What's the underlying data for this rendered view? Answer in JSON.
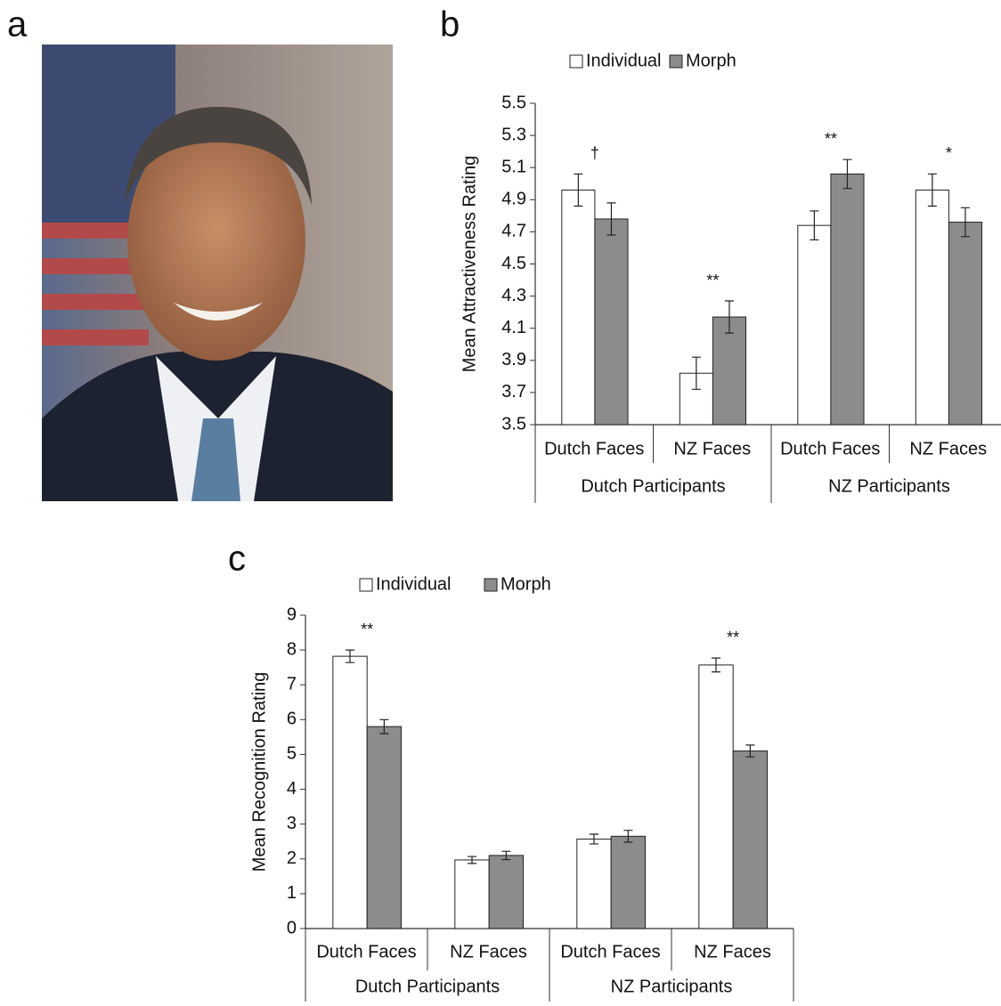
{
  "panel_labels": [
    "a",
    "b",
    "c"
  ],
  "chart_data": [
    {
      "type": "bar",
      "y_label": "Mean Attractiveness Rating",
      "categories": [
        "Dutch Faces",
        "NZ Faces",
        "Dutch Faces",
        "NZ Faces"
      ],
      "groups": [
        "Dutch Participants",
        "NZ Participants"
      ],
      "series": [
        {
          "name": "Individual",
          "color": "#ffffff",
          "values": [
            4.96,
            3.82,
            4.74,
            4.96
          ],
          "errors": [
            0.1,
            0.1,
            0.09,
            0.1
          ]
        },
        {
          "name": "Morph",
          "color": "#8c8c8c",
          "values": [
            4.78,
            4.17,
            5.06,
            4.76
          ],
          "errors": [
            0.1,
            0.1,
            0.09,
            0.09
          ]
        }
      ],
      "annotations": [
        "†",
        "**",
        "**",
        "*"
      ],
      "ylim": [
        3.5,
        5.5
      ],
      "yticks": [
        3.5,
        3.7,
        3.9,
        4.1,
        4.3,
        4.5,
        4.7,
        4.9,
        5.1,
        5.3,
        5.5
      ],
      "grid": false
    },
    {
      "type": "bar",
      "y_label": "Mean Recognition Rating",
      "categories": [
        "Dutch Faces",
        "NZ Faces",
        "Dutch Faces",
        "NZ Faces"
      ],
      "groups": [
        "Dutch Participants",
        "NZ Participants"
      ],
      "series": [
        {
          "name": "Individual",
          "color": "#ffffff",
          "values": [
            7.82,
            1.97,
            2.57,
            7.57
          ],
          "errors": [
            0.18,
            0.1,
            0.14,
            0.2
          ]
        },
        {
          "name": "Morph",
          "color": "#8c8c8c",
          "values": [
            5.8,
            2.1,
            2.65,
            5.1
          ],
          "errors": [
            0.2,
            0.12,
            0.17,
            0.17
          ]
        }
      ],
      "annotations": [
        "**",
        null,
        null,
        "**"
      ],
      "ylim": [
        0,
        9
      ],
      "yticks": [
        0,
        1,
        2,
        3,
        4,
        5,
        6,
        7,
        8,
        9
      ],
      "grid": false
    }
  ]
}
